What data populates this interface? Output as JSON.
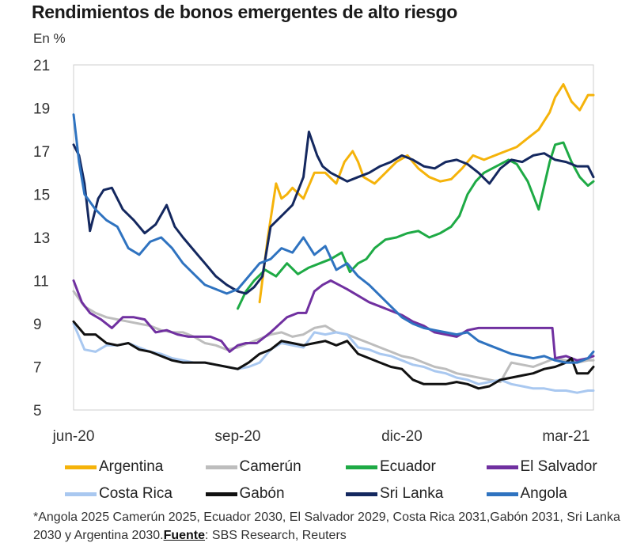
{
  "chart_data": {
    "type": "line",
    "title": "Rendimientos de bonos emergentes de alto riesgo",
    "ylabel": "En %",
    "xlabel": "",
    "ylim": [
      5,
      21
    ],
    "yticks": [
      "21",
      "19",
      "17",
      "15",
      "13",
      "11",
      "9",
      "7",
      "5"
    ],
    "xlim": [
      0,
      9.5
    ],
    "xticks": [
      {
        "label": "jun-20",
        "x": 0
      },
      {
        "label": "sep-20",
        "x": 3
      },
      {
        "label": "dic-20",
        "x": 6
      },
      {
        "label": "mar-21",
        "x": 9
      }
    ],
    "series": [
      {
        "name": "Argentina",
        "color": "#F5B30A",
        "x": [
          3.4,
          3.55,
          3.7,
          3.8,
          3.9,
          4.0,
          4.2,
          4.4,
          4.6,
          4.8,
          4.95,
          5.1,
          5.2,
          5.3,
          5.5,
          5.7,
          5.9,
          6.1,
          6.3,
          6.5,
          6.7,
          6.9,
          7.1,
          7.3,
          7.5,
          7.7,
          7.9,
          8.1,
          8.3,
          8.5,
          8.7,
          8.8,
          8.95,
          9.1,
          9.25,
          9.4,
          9.5
        ],
        "values": [
          10.0,
          13.0,
          15.5,
          14.8,
          15.0,
          15.3,
          14.8,
          16.0,
          16.0,
          15.5,
          16.5,
          17.0,
          16.5,
          15.8,
          15.5,
          16.0,
          16.5,
          16.8,
          16.2,
          15.8,
          15.6,
          15.7,
          16.2,
          16.8,
          16.6,
          16.8,
          17.0,
          17.2,
          17.6,
          18.0,
          18.8,
          19.5,
          20.1,
          19.3,
          18.9,
          19.6,
          19.6
        ]
      },
      {
        "name": "Camerún",
        "color": "#BDBDBD",
        "x": [
          0,
          0.2,
          0.4,
          0.6,
          0.8,
          1.0,
          1.2,
          1.4,
          1.6,
          1.8,
          2.0,
          2.2,
          2.4,
          2.6,
          2.8,
          3.0,
          3.2,
          3.4,
          3.6,
          3.8,
          4.0,
          4.2,
          4.4,
          4.6,
          4.8,
          5.0,
          5.2,
          5.4,
          5.6,
          5.8,
          6.0,
          6.2,
          6.4,
          6.6,
          6.8,
          7.0,
          7.2,
          7.4,
          7.6,
          7.8,
          8.0,
          8.2,
          8.4,
          8.6,
          8.8,
          9.0,
          9.2,
          9.4,
          9.5
        ],
        "values": [
          10.5,
          9.8,
          9.5,
          9.3,
          9.2,
          9.1,
          9.0,
          8.9,
          8.7,
          8.6,
          8.6,
          8.4,
          8.1,
          8.0,
          7.8,
          7.9,
          8.1,
          8.3,
          8.5,
          8.6,
          8.4,
          8.5,
          8.8,
          8.9,
          8.6,
          8.5,
          8.3,
          8.1,
          7.9,
          7.7,
          7.5,
          7.4,
          7.2,
          7.0,
          6.9,
          6.7,
          6.6,
          6.5,
          6.4,
          6.3,
          7.2,
          7.1,
          7.0,
          7.2,
          7.4,
          7.3,
          7.2,
          7.3,
          7.3
        ]
      },
      {
        "name": "Ecuador",
        "color": "#1EAA45",
        "x": [
          3.0,
          3.15,
          3.3,
          3.5,
          3.7,
          3.9,
          4.1,
          4.3,
          4.5,
          4.7,
          4.9,
          5.05,
          5.2,
          5.35,
          5.5,
          5.7,
          5.9,
          6.1,
          6.3,
          6.5,
          6.7,
          6.9,
          7.05,
          7.2,
          7.35,
          7.5,
          7.65,
          7.8,
          7.95,
          8.1,
          8.3,
          8.5,
          8.7,
          8.8,
          8.95,
          9.1,
          9.25,
          9.4,
          9.5
        ],
        "values": [
          9.7,
          10.5,
          11.0,
          11.5,
          11.2,
          11.8,
          11.3,
          11.6,
          11.8,
          12.0,
          12.3,
          11.4,
          11.8,
          12.0,
          12.5,
          12.9,
          13.0,
          13.2,
          13.3,
          13.0,
          13.2,
          13.5,
          14.0,
          15.0,
          15.6,
          16.0,
          16.2,
          16.4,
          16.6,
          16.4,
          15.6,
          14.3,
          16.5,
          17.3,
          17.4,
          16.5,
          15.8,
          15.4,
          15.6
        ]
      },
      {
        "name": "El Salvador",
        "color": "#7030A0",
        "x": [
          0,
          0.15,
          0.3,
          0.5,
          0.7,
          0.9,
          1.1,
          1.3,
          1.5,
          1.7,
          1.9,
          2.1,
          2.3,
          2.5,
          2.7,
          2.85,
          3.0,
          3.15,
          3.35,
          3.6,
          3.9,
          4.1,
          4.25,
          4.4,
          4.55,
          4.7,
          4.85,
          5.0,
          5.2,
          5.4,
          5.6,
          5.8,
          6.0,
          6.2,
          6.4,
          6.6,
          6.8,
          7.0,
          7.2,
          7.4,
          7.6,
          7.8,
          8.0,
          8.2,
          8.4,
          8.6,
          8.75,
          8.8,
          9.0,
          9.2,
          9.4,
          9.5
        ],
        "values": [
          11.0,
          10.0,
          9.5,
          9.2,
          8.8,
          9.3,
          9.3,
          9.2,
          8.6,
          8.7,
          8.5,
          8.4,
          8.4,
          8.4,
          8.2,
          7.7,
          8.0,
          8.1,
          8.1,
          8.6,
          9.3,
          9.5,
          9.5,
          10.5,
          10.8,
          11.0,
          10.8,
          10.6,
          10.3,
          10.0,
          9.8,
          9.6,
          9.4,
          9.1,
          8.9,
          8.6,
          8.5,
          8.4,
          8.7,
          8.8,
          8.8,
          8.8,
          8.8,
          8.8,
          8.8,
          8.8,
          8.8,
          7.4,
          7.5,
          7.3,
          7.4,
          7.5
        ]
      },
      {
        "name": "Costa Rica",
        "color": "#A9C8F0",
        "x": [
          0,
          0.2,
          0.4,
          0.6,
          0.8,
          1.0,
          1.2,
          1.4,
          1.6,
          1.8,
          2.0,
          2.2,
          2.4,
          2.6,
          2.8,
          3.0,
          3.2,
          3.4,
          3.6,
          3.8,
          4.0,
          4.2,
          4.4,
          4.6,
          4.8,
          5.0,
          5.2,
          5.4,
          5.6,
          5.8,
          6.0,
          6.2,
          6.4,
          6.6,
          6.8,
          7.0,
          7.2,
          7.4,
          7.6,
          7.8,
          8.0,
          8.2,
          8.4,
          8.6,
          8.8,
          9.0,
          9.2,
          9.4,
          9.5
        ],
        "values": [
          9.0,
          7.8,
          7.7,
          8.0,
          8.0,
          8.1,
          7.9,
          7.7,
          7.6,
          7.4,
          7.3,
          7.2,
          7.2,
          7.1,
          7.0,
          6.9,
          7.0,
          7.2,
          7.8,
          8.1,
          8.0,
          7.9,
          8.6,
          8.5,
          8.6,
          8.5,
          7.9,
          7.8,
          7.6,
          7.5,
          7.3,
          7.1,
          7.0,
          6.8,
          6.7,
          6.5,
          6.4,
          6.2,
          6.3,
          6.4,
          6.2,
          6.1,
          6.0,
          6.0,
          5.9,
          5.9,
          5.8,
          5.9,
          5.9
        ]
      },
      {
        "name": "Gabón",
        "color": "#111111",
        "x": [
          0,
          0.2,
          0.4,
          0.6,
          0.8,
          1.0,
          1.2,
          1.4,
          1.6,
          1.8,
          2.0,
          2.2,
          2.4,
          2.6,
          2.8,
          3.0,
          3.2,
          3.4,
          3.6,
          3.8,
          4.0,
          4.2,
          4.4,
          4.6,
          4.8,
          5.0,
          5.2,
          5.4,
          5.6,
          5.8,
          6.0,
          6.2,
          6.4,
          6.6,
          6.8,
          7.0,
          7.2,
          7.4,
          7.6,
          7.8,
          8.0,
          8.2,
          8.4,
          8.6,
          8.8,
          9.0,
          9.1,
          9.2,
          9.4,
          9.5
        ],
        "values": [
          9.1,
          8.5,
          8.5,
          8.1,
          8.0,
          8.1,
          7.8,
          7.7,
          7.5,
          7.3,
          7.2,
          7.2,
          7.2,
          7.1,
          7.0,
          6.9,
          7.2,
          7.6,
          7.8,
          8.2,
          8.1,
          8.0,
          8.1,
          8.2,
          8.0,
          8.2,
          7.6,
          7.4,
          7.2,
          7.0,
          6.9,
          6.4,
          6.2,
          6.2,
          6.2,
          6.3,
          6.2,
          6.0,
          6.1,
          6.4,
          6.5,
          6.6,
          6.7,
          6.9,
          7.0,
          7.2,
          7.4,
          6.7,
          6.7,
          7.0
        ]
      },
      {
        "name": "Sri Lanka",
        "color": "#14285F",
        "x": [
          0,
          0.1,
          0.2,
          0.3,
          0.45,
          0.55,
          0.7,
          0.9,
          1.1,
          1.3,
          1.5,
          1.7,
          1.85,
          2.0,
          2.2,
          2.4,
          2.6,
          2.8,
          3.0,
          3.15,
          3.3,
          3.45,
          3.6,
          3.8,
          4.0,
          4.2,
          4.3,
          4.45,
          4.55,
          4.7,
          4.85,
          5.0,
          5.2,
          5.4,
          5.6,
          5.8,
          6.0,
          6.2,
          6.4,
          6.6,
          6.8,
          7.0,
          7.2,
          7.4,
          7.6,
          7.8,
          8.0,
          8.2,
          8.4,
          8.6,
          8.8,
          9.0,
          9.2,
          9.4,
          9.5
        ],
        "values": [
          17.3,
          16.8,
          15.5,
          13.3,
          14.8,
          15.2,
          15.3,
          14.3,
          13.8,
          13.2,
          13.6,
          14.5,
          13.5,
          13.0,
          12.4,
          11.8,
          11.2,
          10.8,
          10.5,
          10.4,
          10.7,
          11.2,
          13.5,
          14.0,
          14.5,
          15.8,
          17.9,
          16.8,
          16.3,
          16.0,
          15.8,
          15.6,
          15.8,
          16.0,
          16.3,
          16.5,
          16.8,
          16.6,
          16.3,
          16.2,
          16.5,
          16.6,
          16.4,
          16.0,
          15.5,
          16.2,
          16.6,
          16.5,
          16.8,
          16.9,
          16.6,
          16.5,
          16.3,
          16.3,
          15.8
        ]
      },
      {
        "name": "Angola",
        "color": "#2F73C0",
        "x": [
          0,
          0.1,
          0.2,
          0.4,
          0.6,
          0.8,
          1.0,
          1.2,
          1.4,
          1.6,
          1.8,
          2.0,
          2.2,
          2.4,
          2.6,
          2.8,
          3.0,
          3.2,
          3.4,
          3.6,
          3.8,
          4.0,
          4.2,
          4.4,
          4.6,
          4.8,
          5.0,
          5.2,
          5.4,
          5.6,
          5.8,
          6.0,
          6.2,
          6.4,
          6.6,
          6.8,
          7.0,
          7.2,
          7.4,
          7.6,
          7.8,
          8.0,
          8.2,
          8.4,
          8.6,
          8.8,
          9.0,
          9.2,
          9.4,
          9.5
        ],
        "values": [
          18.7,
          16.5,
          15.0,
          14.3,
          13.8,
          13.5,
          12.5,
          12.2,
          12.8,
          13.0,
          12.5,
          11.8,
          11.3,
          10.8,
          10.6,
          10.4,
          10.6,
          11.2,
          11.8,
          12.0,
          12.5,
          12.3,
          13.0,
          12.2,
          12.6,
          11.5,
          11.8,
          11.2,
          10.8,
          10.3,
          9.8,
          9.3,
          9.0,
          8.8,
          8.7,
          8.6,
          8.5,
          8.6,
          8.2,
          8.0,
          7.8,
          7.6,
          7.5,
          7.4,
          7.5,
          7.3,
          7.2,
          7.2,
          7.4,
          7.7
        ]
      }
    ]
  },
  "legend": [
    {
      "label": "Argentina",
      "color": "#F5B30A"
    },
    {
      "label": "Camerún",
      "color": "#BDBDBD"
    },
    {
      "label": "Ecuador",
      "color": "#1EAA45"
    },
    {
      "label": "El Salvador",
      "color": "#7030A0"
    },
    {
      "label": "Costa Rica",
      "color": "#A9C8F0"
    },
    {
      "label": "Gabón",
      "color": "#111111"
    },
    {
      "label": "Sri Lanka",
      "color": "#14285F"
    },
    {
      "label": "Angola",
      "color": "#2F73C0"
    }
  ],
  "footnote": {
    "text": "*Angola 2025 Camerún 2025, Ecuador 2030, El Salvador 2029, Costa Rica 2031,Gabón 2031, Sri Lanka 2030 y Argentina 2030.",
    "source_label": "Fuente",
    "source_text": ": SBS Research, Reuters"
  }
}
